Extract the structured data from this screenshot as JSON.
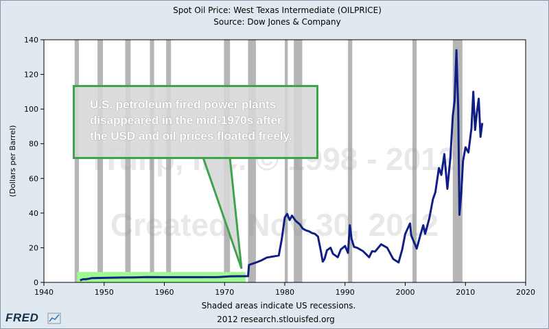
{
  "chart_data": {
    "type": "line",
    "title": "Spot Oil Price: West Texas Intermediate (OILPRICE)",
    "subtitle": "Source: Dow Jones & Company",
    "ylabel": "(Dollars per Barrel)",
    "xlabel": "Shaded areas indicate US recessions.",
    "footer": "2012 research.stlouisfed.org",
    "xlim": [
      1940,
      2020
    ],
    "ylim": [
      0,
      140
    ],
    "x_ticks": [
      1940,
      1950,
      1960,
      1970,
      1980,
      1990,
      2000,
      2010,
      2020
    ],
    "y_ticks": [
      0,
      20,
      40,
      60,
      80,
      100,
      120,
      140
    ],
    "recessions": [
      [
        1945.1,
        1945.8
      ],
      [
        1948.9,
        1949.8
      ],
      [
        1953.5,
        1954.4
      ],
      [
        1957.6,
        1958.3
      ],
      [
        1960.3,
        1961.1
      ],
      [
        1969.9,
        1970.9
      ],
      [
        1973.9,
        1975.2
      ],
      [
        1980.0,
        1980.5
      ],
      [
        1981.5,
        1982.9
      ],
      [
        1990.5,
        1991.2
      ],
      [
        2001.2,
        2001.9
      ],
      [
        2007.9,
        2009.5
      ]
    ],
    "series": [
      {
        "values": [
          [
            1946,
            1.2
          ],
          [
            1946.5,
            1.8
          ],
          [
            1947,
            1.8
          ],
          [
            1948,
            2.5
          ],
          [
            1950,
            2.6
          ],
          [
            1953,
            2.8
          ],
          [
            1955,
            2.9
          ],
          [
            1957,
            3.1
          ],
          [
            1960,
            3.0
          ],
          [
            1965,
            3.0
          ],
          [
            1969,
            3.1
          ],
          [
            1971,
            3.5
          ],
          [
            1973.9,
            3.6
          ],
          [
            1974.05,
            10.1
          ],
          [
            1975,
            11.2
          ],
          [
            1976,
            12.5
          ],
          [
            1977,
            14.3
          ],
          [
            1978,
            14.9
          ],
          [
            1979,
            15.5
          ],
          [
            1979.5,
            25
          ],
          [
            1980,
            37.5
          ],
          [
            1980.4,
            39.5
          ],
          [
            1980.8,
            36
          ],
          [
            1981.2,
            38.5
          ],
          [
            1981.8,
            35.5
          ],
          [
            1982.5,
            33.5
          ],
          [
            1983,
            31
          ],
          [
            1983.5,
            30
          ],
          [
            1984,
            29.5
          ],
          [
            1984.5,
            28.5
          ],
          [
            1985,
            28
          ],
          [
            1985.5,
            26.5
          ],
          [
            1986.0,
            18
          ],
          [
            1986.3,
            12
          ],
          [
            1986.6,
            13.5
          ],
          [
            1987,
            18.5
          ],
          [
            1987.6,
            20
          ],
          [
            1988,
            16.5
          ],
          [
            1988.8,
            14.5
          ],
          [
            1989.3,
            19
          ],
          [
            1990,
            21
          ],
          [
            1990.5,
            17
          ],
          [
            1990.8,
            33
          ],
          [
            1991.1,
            25
          ],
          [
            1991.5,
            20.5
          ],
          [
            1992,
            20
          ],
          [
            1993,
            18
          ],
          [
            1994,
            14.5
          ],
          [
            1994.5,
            18
          ],
          [
            1995,
            17.8
          ],
          [
            1996,
            22
          ],
          [
            1997,
            20
          ],
          [
            1998,
            13.5
          ],
          [
            1998.9,
            11.5
          ],
          [
            1999.5,
            19
          ],
          [
            2000,
            28
          ],
          [
            2000.8,
            34
          ],
          [
            2001,
            27
          ],
          [
            2001.9,
            19.5
          ],
          [
            2002.5,
            27
          ],
          [
            2003,
            33
          ],
          [
            2003.3,
            28
          ],
          [
            2004,
            37
          ],
          [
            2004.6,
            48
          ],
          [
            2005,
            52
          ],
          [
            2005.6,
            66
          ],
          [
            2006,
            62
          ],
          [
            2006.5,
            74
          ],
          [
            2007,
            54
          ],
          [
            2007.5,
            72
          ],
          [
            2007.9,
            96
          ],
          [
            2008.2,
            105
          ],
          [
            2008.5,
            134
          ],
          [
            2008.8,
            100
          ],
          [
            2009.0,
            39
          ],
          [
            2009.3,
            51
          ],
          [
            2009.6,
            70
          ],
          [
            2010,
            78
          ],
          [
            2010.5,
            75
          ],
          [
            2011,
            89
          ],
          [
            2011.3,
            110
          ],
          [
            2011.6,
            88
          ],
          [
            2011.9,
            98
          ],
          [
            2012.2,
            106
          ],
          [
            2012.5,
            84
          ],
          [
            2012.8,
            92
          ]
        ]
      }
    ],
    "watermarks": [
      "iTulip, Inc. © 1998 - 2012",
      "Created: Nov 30, 2012"
    ],
    "annotation": {
      "lines": [
        "U.S. petroleum fired power plants",
        "disappeared in the mid-1970s after",
        "the USD and oil prices floated freely."
      ],
      "highlight_x": [
        1945.5,
        1973.5
      ]
    },
    "colors": {
      "line": "#0f1d85",
      "recession": "#b5b5b5",
      "highlight": "#9dfa8d",
      "callout_border": "#3fa34d"
    },
    "grid": false,
    "legend": "none"
  },
  "logo": {
    "text": "FRED",
    "icon": "chart-line-icon"
  }
}
